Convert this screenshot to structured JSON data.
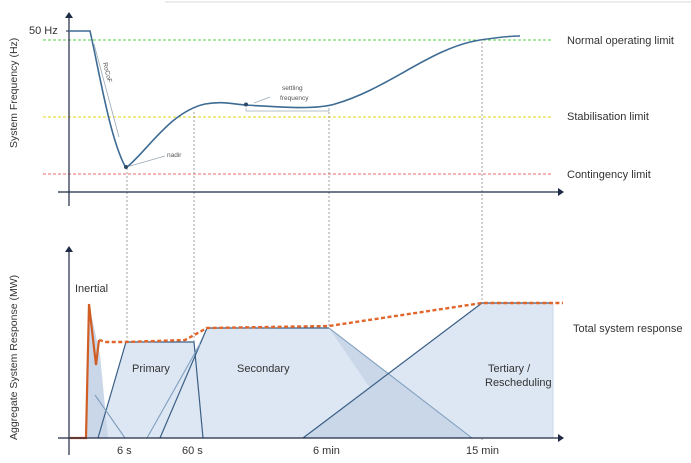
{
  "colors": {
    "normal_limit": "#55d04a",
    "stabilisation_limit": "#e6e04a",
    "contingency_limit": "#ee6a6a",
    "frequency_curve": "#3d6b94",
    "total_response": "#e0662b",
    "axis": "#1f2a44"
  },
  "top_chart": {
    "y_axis_label": "System Frequency (Hz)",
    "y_tick": "50 Hz",
    "limits": {
      "normal": "Normal operating limit",
      "stabilisation": "Stabilisation limit",
      "contingency": "Contingency limit"
    },
    "annotations": {
      "rocof": "RoCoF",
      "nadir": "nadir",
      "settling_line1": "settling",
      "settling_line2": "frequency"
    }
  },
  "bottom_chart": {
    "y_axis_label": "Aggregate System Response (MW)",
    "regions": {
      "inertial": "Inertial",
      "primary": "Primary",
      "secondary": "Secondary",
      "tertiary_line1": "Tertiary /",
      "tertiary_line2": "Rescheduling"
    },
    "total_label": "Total system response",
    "x_ticks": [
      "6 s",
      "60 s",
      "6 min",
      "15 min"
    ]
  }
}
